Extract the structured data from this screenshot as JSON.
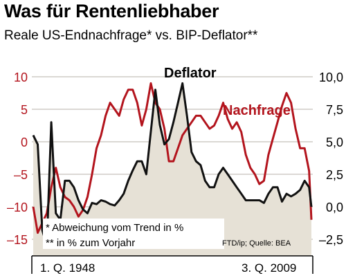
{
  "title": "Was für Rentenliebhaber",
  "subtitle": "Reale US-Endnachfrage* vs. BIP-Deflator**",
  "footnote_1": "* Abweichung vom Trend in %",
  "footnote_2": "** in % zum Vorjahr",
  "source": "FTD/ip; Quelle: BEA",
  "colors": {
    "nachfrage": "#b3141d",
    "deflator": "#111111",
    "fill": "#e6e1d6",
    "grid": "#b7b2aa"
  },
  "chart_data": {
    "type": "line",
    "grid": true,
    "x_start_label": "1. Q. 1948",
    "x_end_label": "3. Q. 2009",
    "x": [
      1948.0,
      1949.0,
      1950.0,
      1951.0,
      1952.0,
      1953.0,
      1954.0,
      1955.0,
      1956.0,
      1957.0,
      1958.0,
      1959.0,
      1960.0,
      1961.0,
      1962.0,
      1963.0,
      1964.0,
      1965.0,
      1966.0,
      1967.0,
      1968.0,
      1969.0,
      1970.0,
      1971.0,
      1972.0,
      1973.0,
      1974.0,
      1975.0,
      1976.0,
      1977.0,
      1978.0,
      1979.0,
      1980.0,
      1981.0,
      1982.0,
      1983.0,
      1984.0,
      1985.0,
      1986.0,
      1987.0,
      1988.0,
      1989.0,
      1990.0,
      1991.0,
      1992.0,
      1993.0,
      1994.0,
      1995.0,
      1996.0,
      1997.0,
      1998.0,
      1999.0,
      2000.0,
      2001.0,
      2002.0,
      2003.0,
      2004.0,
      2005.0,
      2006.0,
      2007.0,
      2008.0,
      2009.0,
      2009.5
    ],
    "left_axis": {
      "label": "",
      "ticks": [
        10,
        5,
        0,
        -5,
        -10,
        -15
      ],
      "ylim": [
        -17,
        12
      ]
    },
    "right_axis": {
      "label": "",
      "ticks": [
        "10,0",
        "7,5",
        "5,0",
        "2,5",
        "0,0",
        "-2,5"
      ],
      "ylim": [
        -3.5,
        11
      ]
    },
    "series": [
      {
        "name": "Nachfrage",
        "axis": "left",
        "values": [
          -10,
          -14,
          -12.5,
          -11,
          -7,
          -4,
          -7,
          -8.5,
          -9,
          -10,
          -11.5,
          -10.5,
          -8.5,
          -5,
          -1,
          1,
          4,
          6,
          5,
          4,
          6.5,
          8,
          8,
          6,
          2.5,
          5,
          9,
          6,
          5,
          2,
          -3,
          -3,
          -1,
          1,
          2,
          3,
          4,
          4,
          3,
          2,
          2.5,
          4,
          6,
          3.5,
          2,
          3,
          1.5,
          -2,
          -4,
          -5,
          -6.5,
          -6,
          -2,
          0.5,
          3,
          5.5,
          7.5,
          6,
          2,
          -1,
          -1,
          -4.5,
          -12
        ]
      },
      {
        "name": "Deflator",
        "axis": "right",
        "values": [
          5.5,
          4.8,
          -1.8,
          -3,
          6.5,
          -0.5,
          -1,
          2,
          2,
          1.5,
          0.5,
          -0.2,
          -0.5,
          0.3,
          0.2,
          0.5,
          0.4,
          0.2,
          0.1,
          0.5,
          1,
          2,
          2.8,
          3.5,
          3.5,
          2.5,
          5.8,
          9,
          6.3,
          4.8,
          5.2,
          6.5,
          8,
          9.5,
          7,
          4.2,
          3.5,
          3.2,
          2,
          1.5,
          1.5,
          2.5,
          3,
          2.5,
          2,
          1.5,
          1,
          0.5,
          0.5,
          0.5,
          0.5,
          0.3,
          1,
          1.5,
          1.5,
          0.4,
          1,
          0.8,
          1,
          1.3,
          2,
          1.5,
          0
        ]
      }
    ]
  }
}
